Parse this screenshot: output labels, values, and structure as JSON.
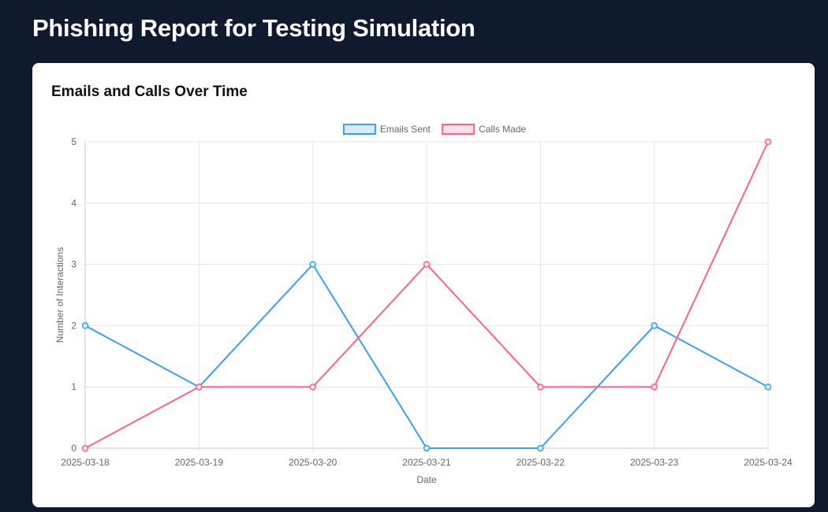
{
  "page": {
    "title": "Phishing Report for Testing Simulation"
  },
  "card": {
    "title": "Emails and Calls Over Time"
  },
  "chart_data": {
    "type": "line",
    "title": "Emails and Calls Over Time",
    "xlabel": "Date",
    "ylabel": "Number of Interactions",
    "categories": [
      "2025-03-18",
      "2025-03-19",
      "2025-03-20",
      "2025-03-21",
      "2025-03-22",
      "2025-03-23",
      "2025-03-24"
    ],
    "ylim": [
      0,
      5
    ],
    "yticks": [
      0,
      1,
      2,
      3,
      4,
      5
    ],
    "grid": true,
    "legend_position": "top-center",
    "series": [
      {
        "name": "Emails Sent",
        "values": [
          2,
          1,
          3,
          0,
          0,
          2,
          1
        ],
        "color": "#36a2eb",
        "fill_color": "#d7ecfb"
      },
      {
        "name": "Calls Made",
        "values": [
          0,
          1,
          1,
          3,
          1,
          1,
          5
        ],
        "color": "#ff6384",
        "fill_color": "#ffe0e6"
      }
    ]
  }
}
